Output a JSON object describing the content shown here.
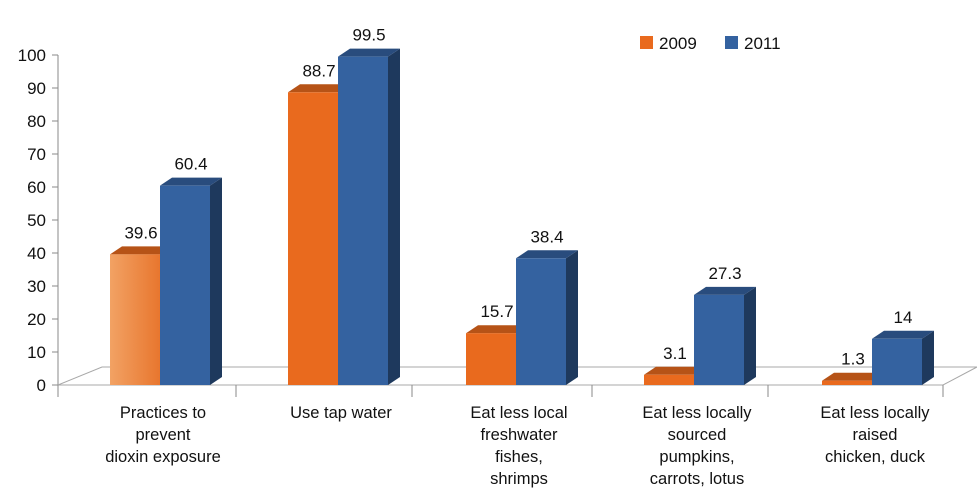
{
  "chart_data": {
    "type": "bar",
    "title": "",
    "xlabel": "",
    "ylabel": "",
    "ylim": [
      0,
      100
    ],
    "yticks": [
      0,
      10,
      20,
      30,
      40,
      50,
      60,
      70,
      80,
      90,
      100
    ],
    "categories": [
      [
        "Practices to",
        "prevent",
        "dioxin exposure"
      ],
      [
        "Use tap water"
      ],
      [
        "Eat less local",
        "freshwater",
        "fishes,",
        "shrimps"
      ],
      [
        "Eat less locally",
        "sourced",
        "pumpkins,",
        "carrots, lotus"
      ],
      [
        "Eat less locally",
        "raised",
        "chicken, duck"
      ]
    ],
    "series": [
      {
        "name": "2009",
        "values": [
          39.6,
          88.7,
          15.7,
          3.1,
          1.3
        ],
        "labels": [
          "39.6",
          "88.7",
          "15.7",
          "3.1",
          "1.3"
        ],
        "color": "#E96A1E"
      },
      {
        "name": "2011",
        "values": [
          60.4,
          99.5,
          38.4,
          27.3,
          14
        ],
        "labels": [
          "60.4",
          "99.5",
          "38.4",
          "27.3",
          "14"
        ],
        "color": "#3462A0"
      }
    ],
    "legend_position": "top-right",
    "style": "3d-bars",
    "grid": false
  }
}
